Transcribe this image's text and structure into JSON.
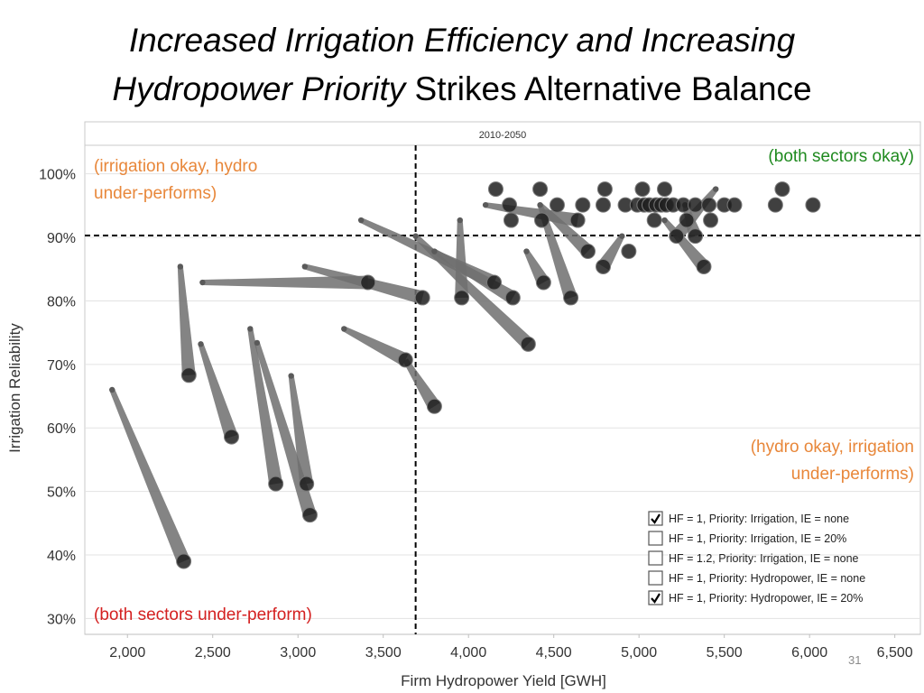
{
  "slide": {
    "title_line1": "Increased Irrigation Efficiency and Increasing",
    "title_line2_italic": "Hydropower Priority",
    "title_line2_rest": " Strikes Alternative Balance",
    "slide_number": "31"
  },
  "chart_data": {
    "type": "scatter",
    "subtitle": "2010-2050",
    "xlabel": "Firm Hydropower Yield [GWH]",
    "ylabel": "Irrigation Reliability",
    "xlim": [
      1750,
      6650
    ],
    "ylim": [
      27.5,
      104.5
    ],
    "xticks": [
      2000,
      2500,
      3000,
      3500,
      4000,
      4500,
      5000,
      5500,
      6000,
      6500
    ],
    "xtick_labels": [
      "2,000",
      "2,500",
      "3,000",
      "3,500",
      "4,000",
      "4,500",
      "5,000",
      "5,500",
      "6,000",
      "6,500"
    ],
    "yticks": [
      30,
      40,
      50,
      60,
      70,
      80,
      90,
      100
    ],
    "ytick_labels": [
      "30%",
      "40%",
      "50%",
      "60%",
      "70%",
      "80%",
      "90%",
      "100%"
    ],
    "reference_lines": {
      "x": 3690,
      "y": 90.3,
      "style": "dashed"
    },
    "quadrant_labels": [
      {
        "lines": [
          "(irrigation okay, hydro",
          "under-performs)"
        ],
        "color": "#e8873a",
        "position": "top-left"
      },
      {
        "lines": [
          "(both sectors okay)"
        ],
        "color": "#1f8a1f",
        "position": "top-right"
      },
      {
        "lines": [
          "(hydro okay, irrigation",
          "under-performs)"
        ],
        "color": "#e8873a",
        "position": "bottom-right"
      },
      {
        "lines": [
          "(both sectors under-perform)"
        ],
        "color": "#d42020",
        "position": "bottom-left"
      }
    ],
    "legend": {
      "position": "bottom-right",
      "items": [
        {
          "label": "HF = 1, Priority: Irrigation, IE = none",
          "checked": true
        },
        {
          "label": "HF = 1, Priority: Irrigation, IE = 20%",
          "checked": false
        },
        {
          "label": "HF = 1.2, Priority: Irrigation, IE = none",
          "checked": false
        },
        {
          "label": "HF = 1, Priority: Hydropower, IE = none",
          "checked": false
        },
        {
          "label": "HF = 1, Priority: Hydropower, IE = 20%",
          "checked": true
        }
      ]
    },
    "series": [
      {
        "marker": "start (small)",
        "points": [
          [
            1910,
            66
          ],
          [
            2310,
            85.4
          ],
          [
            2430,
            73.2
          ],
          [
            2440,
            82.9
          ],
          [
            2720,
            75.6
          ],
          [
            2760,
            73.4
          ],
          [
            2960,
            68.2
          ],
          [
            3040,
            85.4
          ],
          [
            3270,
            75.6
          ],
          [
            3370,
            92.7
          ],
          [
            3690,
            90.2
          ],
          [
            3800,
            87.8
          ],
          [
            3950,
            92.7
          ],
          [
            4100,
            95.1
          ],
          [
            4340,
            87.8
          ],
          [
            4420,
            95.1
          ],
          [
            4900,
            90.2
          ],
          [
            5150,
            92.7
          ],
          [
            5270,
            95.1
          ],
          [
            5450,
            97.6
          ]
        ]
      },
      {
        "marker": "end (large)",
        "points": [
          [
            2330,
            39
          ],
          [
            2360,
            68.3
          ],
          [
            2610,
            58.6
          ],
          [
            3410,
            82.9
          ],
          [
            3730,
            80.5
          ],
          [
            2870,
            51.2
          ],
          [
            3050,
            51.2
          ],
          [
            3070,
            46.3
          ],
          [
            3630,
            70.7
          ],
          [
            3800,
            63.4
          ],
          [
            4150,
            82.9
          ],
          [
            4260,
            80.5
          ],
          [
            3960,
            80.5
          ],
          [
            4350,
            73.2
          ],
          [
            4440,
            82.9
          ],
          [
            4600,
            80.5
          ],
          [
            4700,
            87.8
          ],
          [
            4790,
            85.4
          ],
          [
            4940,
            87.8
          ],
          [
            5090,
            92.7
          ],
          [
            5220,
            90.2
          ],
          [
            5330,
            90.2
          ],
          [
            5380,
            85.4
          ],
          [
            4640,
            92.7
          ],
          [
            4430,
            92.7
          ],
          [
            4250,
            92.7
          ],
          [
            5280,
            92.7
          ],
          [
            5420,
            92.7
          ],
          [
            4160,
            97.6
          ],
          [
            4420,
            97.6
          ],
          [
            4800,
            97.6
          ],
          [
            5020,
            97.6
          ],
          [
            5150,
            97.6
          ],
          [
            5840,
            97.6
          ],
          [
            4240,
            95.1
          ],
          [
            4520,
            95.1
          ],
          [
            4670,
            95.1
          ],
          [
            4790,
            95.1
          ],
          [
            4920,
            95.1
          ],
          [
            4990,
            95.1
          ],
          [
            5030,
            95.1
          ],
          [
            5060,
            95.1
          ],
          [
            5100,
            95.1
          ],
          [
            5130,
            95.1
          ],
          [
            5160,
            95.1
          ],
          [
            5200,
            95.1
          ],
          [
            5260,
            95.1
          ],
          [
            5330,
            95.1
          ],
          [
            5410,
            95.1
          ],
          [
            5500,
            95.1
          ],
          [
            5560,
            95.1
          ],
          [
            5800,
            95.1
          ],
          [
            6020,
            95.1
          ]
        ]
      }
    ],
    "connections": [
      [
        [
          1910,
          66
        ],
        [
          2330,
          39
        ]
      ],
      [
        [
          2310,
          85.4
        ],
        [
          2360,
          68.3
        ]
      ],
      [
        [
          2430,
          73.2
        ],
        [
          2610,
          58.6
        ]
      ],
      [
        [
          2440,
          82.9
        ],
        [
          3410,
          82.9
        ]
      ],
      [
        [
          3040,
          85.4
        ],
        [
          3730,
          80.5
        ]
      ],
      [
        [
          2720,
          75.6
        ],
        [
          2870,
          51.2
        ]
      ],
      [
        [
          2760,
          73.4
        ],
        [
          3070,
          46.3
        ]
      ],
      [
        [
          2960,
          68.2
        ],
        [
          3050,
          51.2
        ]
      ],
      [
        [
          3270,
          75.6
        ],
        [
          3630,
          70.7
        ]
      ],
      [
        [
          3630,
          70.7
        ],
        [
          3800,
          63.4
        ]
      ],
      [
        [
          3370,
          92.7
        ],
        [
          4150,
          82.9
        ]
      ],
      [
        [
          3690,
          90.2
        ],
        [
          4350,
          73.2
        ]
      ],
      [
        [
          3800,
          87.8
        ],
        [
          4260,
          80.5
        ]
      ],
      [
        [
          3950,
          92.7
        ],
        [
          3960,
          80.5
        ]
      ],
      [
        [
          4340,
          87.8
        ],
        [
          4440,
          82.9
        ]
      ],
      [
        [
          4420,
          95.1
        ],
        [
          4600,
          80.5
        ]
      ],
      [
        [
          4100,
          95.1
        ],
        [
          4640,
          92.7
        ]
      ],
      [
        [
          4420,
          95.1
        ],
        [
          4700,
          87.8
        ]
      ],
      [
        [
          4900,
          90.2
        ],
        [
          4790,
          85.4
        ]
      ],
      [
        [
          5150,
          92.7
        ],
        [
          5380,
          85.4
        ]
      ],
      [
        [
          5270,
          95.1
        ],
        [
          5330,
          90.2
        ]
      ],
      [
        [
          5450,
          97.6
        ],
        [
          5220,
          90.2
        ]
      ]
    ]
  }
}
